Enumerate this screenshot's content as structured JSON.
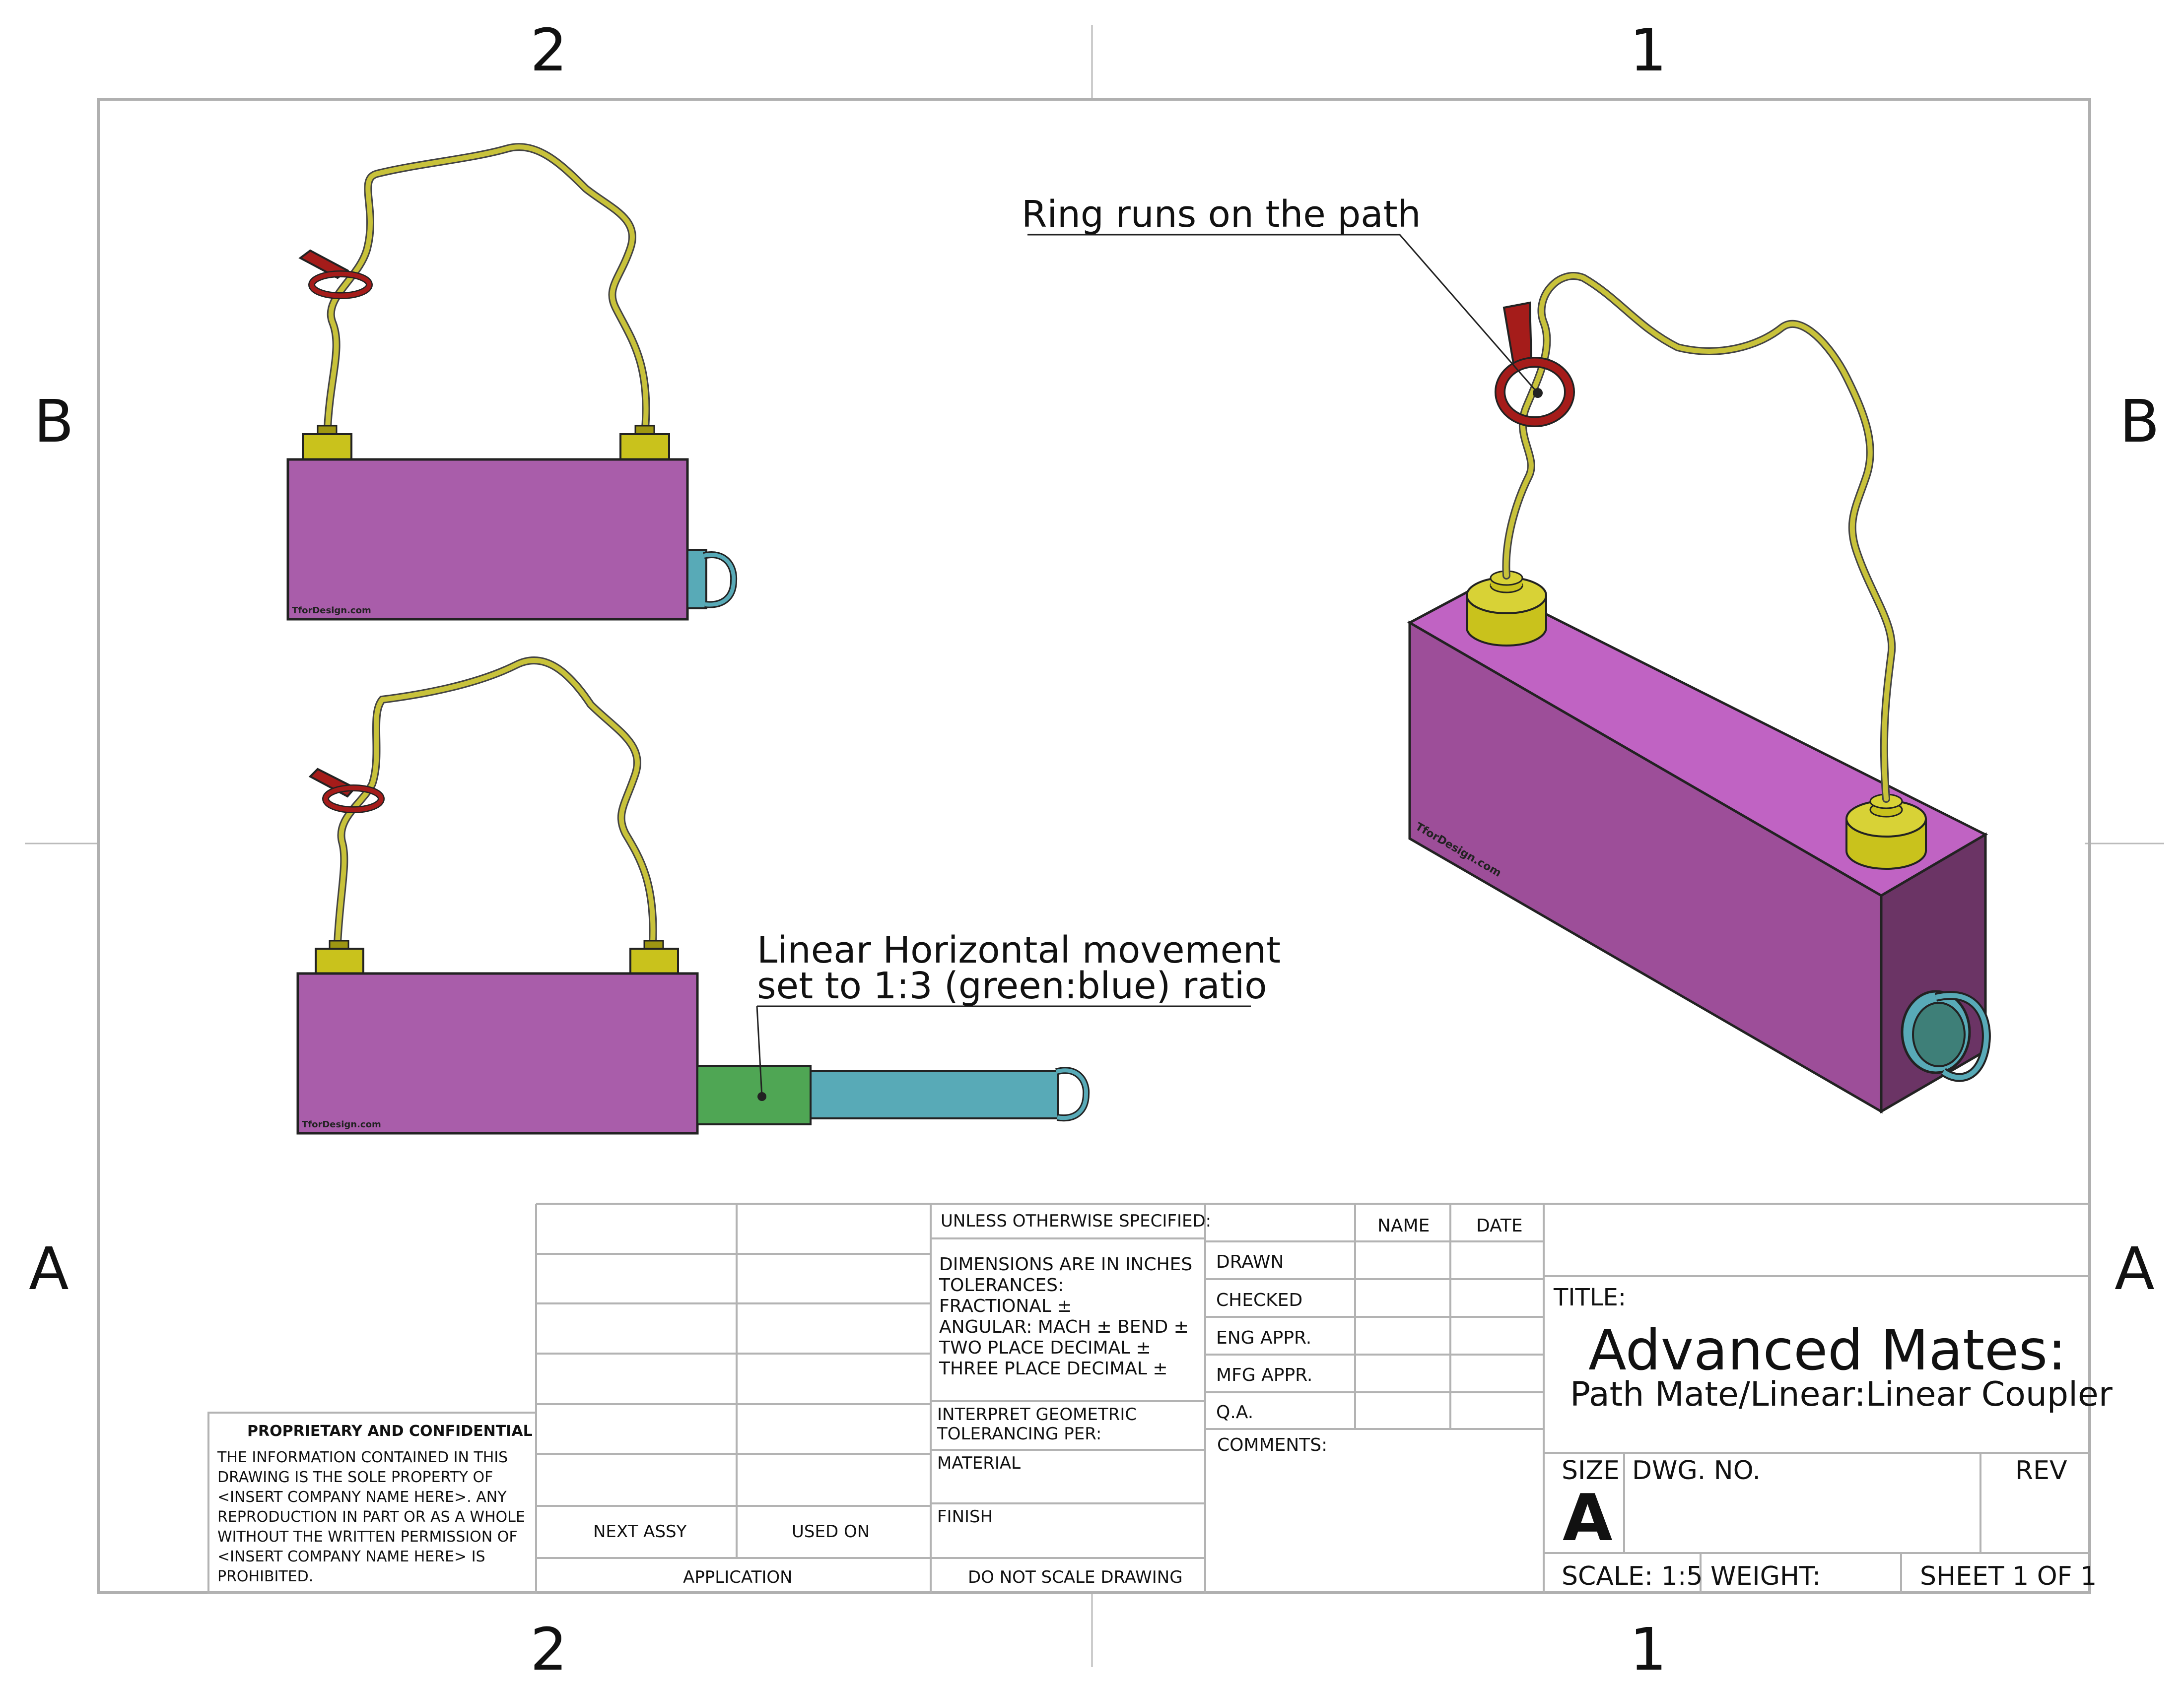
{
  "zones": {
    "col_left": "2",
    "col_right": "1",
    "row_top": "B",
    "row_bottom": "A"
  },
  "annotations": {
    "ring_path": "Ring runs on the path",
    "linear_line1": "Linear Horizontal movement",
    "linear_line2": "set to 1:3 (green:blue) ratio"
  },
  "model": {
    "watermark": "TforDesign.com",
    "colors": {
      "box": "#a95daa",
      "box_top": "#c063c3",
      "box_side": "#6b3465",
      "wire": "#c8c23a",
      "cap": "#c9c21c",
      "ring": "#a51c1a",
      "green_rod": "#4fa654",
      "blue_rod": "#58aab7"
    }
  },
  "title_block": {
    "proprietary": {
      "title": "PROPRIETARY AND CONFIDENTIAL",
      "text": "THE INFORMATION CONTAINED IN THIS DRAWING IS THE SOLE PROPERTY OF <INSERT COMPANY NAME HERE>.  ANY REPRODUCTION IN PART OR AS A WHOLE WITHOUT THE WRITTEN PERMISSION OF <INSERT COMPANY NAME HERE> IS PROHIBITED."
    },
    "next_assy": "NEXT ASSY",
    "used_on": "USED ON",
    "application": "APPLICATION",
    "unless": "UNLESS OTHERWISE SPECIFIED:",
    "tolerances": [
      "DIMENSIONS ARE IN INCHES",
      "TOLERANCES:",
      "FRACTIONAL ±",
      "ANGULAR: MACH ±     BEND ±",
      "TWO PLACE DECIMAL    ±",
      "THREE PLACE DECIMAL   ±"
    ],
    "interpret": "INTERPRET GEOMETRIC TOLERANCING PER:",
    "material": "MATERIAL",
    "finish": "FINISH",
    "do_not_scale": "DO NOT SCALE DRAWING",
    "name": "NAME",
    "date": "DATE",
    "roles": [
      "DRAWN",
      "CHECKED",
      "ENG APPR.",
      "MFG APPR.",
      "Q.A."
    ],
    "comments": "COMMENTS:",
    "title_label": "TITLE:",
    "title": "Advanced Mates:",
    "subtitle": "Path Mate/Linear:Linear Coupler",
    "size_label": "SIZE",
    "size": "A",
    "dwg_no": "DWG.  NO.",
    "rev": "REV",
    "scale": "SCALE: 1:5",
    "weight": "WEIGHT:",
    "sheet": "SHEET 1 OF 1"
  }
}
